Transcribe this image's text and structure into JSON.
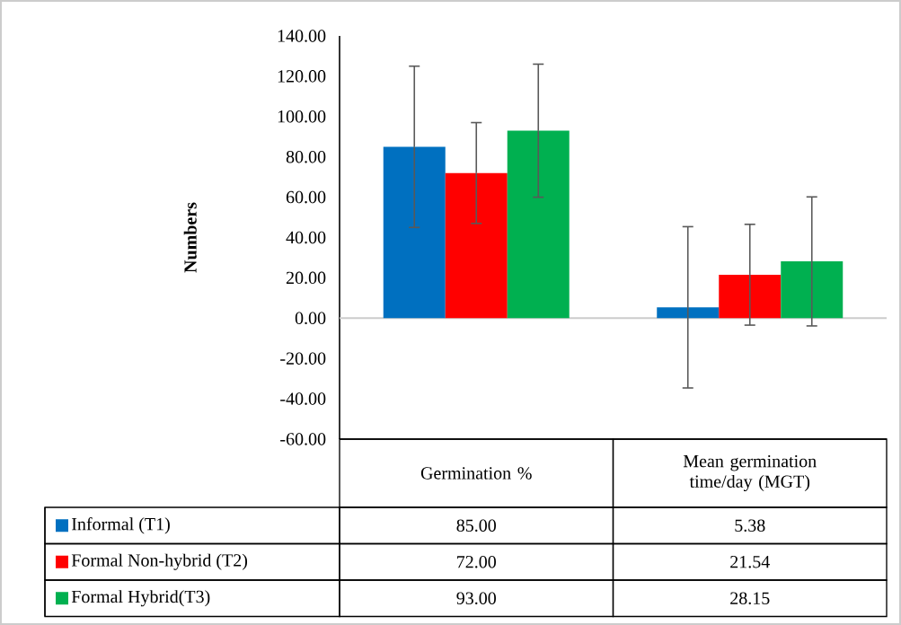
{
  "chart_data": {
    "type": "bar",
    "ylabel": "Numbers",
    "categories": [
      "Germination %",
      "Mean germination time/day (MGT)"
    ],
    "series": [
      {
        "name": "Informal (T1)",
        "color": "#0070c0",
        "values": [
          85.0,
          5.38
        ],
        "errors": [
          40,
          40
        ],
        "value_labels": [
          "85.00",
          "5.38"
        ]
      },
      {
        "name": "Formal Non-hybrid (T2)",
        "color": "#ff0000",
        "values": [
          72.0,
          21.54
        ],
        "errors": [
          25,
          25
        ],
        "value_labels": [
          "72.00",
          "21.54"
        ]
      },
      {
        "name": "Formal Hybrid(T3)",
        "color": "#00b050",
        "values": [
          93.0,
          28.15
        ],
        "errors": [
          33,
          32
        ],
        "value_labels": [
          "93.00",
          "28.15"
        ]
      }
    ],
    "ylim": [
      -60,
      140
    ],
    "yticks": [
      {
        "value": -60,
        "label": "-60.00"
      },
      {
        "value": -40,
        "label": "-40.00"
      },
      {
        "value": -20,
        "label": "-20.00"
      },
      {
        "value": 0,
        "label": "0.00"
      },
      {
        "value": 20,
        "label": "20.00"
      },
      {
        "value": 40,
        "label": "40.00"
      },
      {
        "value": 60,
        "label": "60.00"
      },
      {
        "value": 80,
        "label": "80.00"
      },
      {
        "value": 100,
        "label": "100.00"
      },
      {
        "value": 120,
        "label": "120.00"
      },
      {
        "value": 140,
        "label": "140.00"
      }
    ],
    "legend": "bottom"
  }
}
